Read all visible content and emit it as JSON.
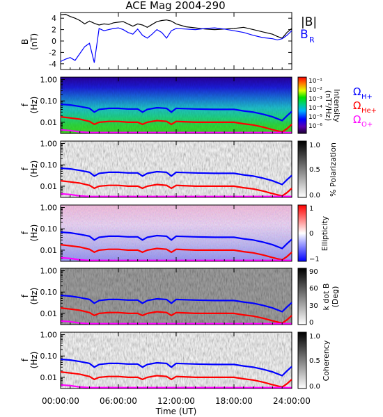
{
  "chart_data": {
    "type": "line",
    "title": "ACE Mag 2004-290",
    "xlabel": "Time (UT)",
    "x_ticks": [
      "00:00:00",
      "06:00:00",
      "12:00:00",
      "18:00:00",
      "24:00:00"
    ],
    "x_range_hours": [
      0,
      24
    ],
    "colors": {
      "B_total": "#000000",
      "B_R": "#0000ff",
      "H_plus": "#0000ff",
      "He_plus": "#ff0000",
      "O_plus": "#ff00ff"
    },
    "panels": [
      {
        "id": "field",
        "ylabel": "B",
        "yunit": "(nT)",
        "ylim": [
          -5,
          5
        ],
        "y_ticks": [
          "4",
          "2",
          "0",
          "-2",
          "-4"
        ],
        "y_tick_values": [
          4,
          2,
          0,
          -2,
          -4
        ],
        "legend_labels": [
          "|B|",
          "B",
          "R"
        ],
        "series": [
          {
            "name": "|B|",
            "hours": [
              0,
              0.5,
              1,
              1.5,
              2,
              2.5,
              3,
              3.5,
              4,
              4.5,
              5,
              5.5,
              6,
              6.5,
              7,
              7.5,
              8,
              8.5,
              9,
              9.5,
              10,
              10.5,
              11,
              11.5,
              12,
              13,
              14,
              15,
              16,
              17,
              18,
              19,
              20,
              21,
              22,
              22.5,
              23,
              23.5,
              24
            ],
            "values": [
              4.6,
              4.7,
              4.3,
              4.0,
              3.6,
              3.0,
              3.5,
              3.1,
              2.8,
              3.0,
              2.9,
              3.2,
              3.3,
              3.4,
              3.0,
              2.6,
              3.0,
              2.8,
              2.4,
              2.9,
              3.4,
              3.6,
              3.7,
              3.5,
              3.0,
              2.5,
              2.3,
              2.1,
              2.0,
              2.1,
              2.2,
              2.4,
              2.0,
              1.6,
              1.2,
              0.8,
              0.5,
              1.5,
              2.2
            ]
          },
          {
            "name": "B_R",
            "hours": [
              0,
              0.5,
              1,
              1.5,
              2,
              2.5,
              3,
              3.5,
              4,
              4.5,
              5,
              5.5,
              6,
              6.5,
              7,
              7.5,
              8,
              8.5,
              9,
              9.5,
              10,
              10.5,
              11,
              11.5,
              12,
              13,
              14,
              15,
              16,
              17,
              18,
              19,
              20,
              21,
              22,
              22.5,
              23,
              23.5,
              24
            ],
            "values": [
              -3.6,
              -3.2,
              -2.9,
              -3.4,
              -2.2,
              -1.0,
              -0.4,
              -3.8,
              2.2,
              1.8,
              2.0,
              2.2,
              2.3,
              2.0,
              1.5,
              1.2,
              2.1,
              1.0,
              0.5,
              1.2,
              2.0,
              1.5,
              0.5,
              1.8,
              2.2,
              2.1,
              2.0,
              2.2,
              2.3,
              2.1,
              1.8,
              1.5,
              1.0,
              0.6,
              0.4,
              0.2,
              0.4,
              1.0,
              1.8
            ]
          }
        ]
      },
      {
        "id": "intensity",
        "ylabel": "f",
        "yunit": "(Hz)",
        "ylim": [
          0.003,
          1.3
        ],
        "log_y": true,
        "y_ticks": [
          "1.00",
          "0.10",
          "0.01"
        ],
        "colorbar": {
          "label": "Intensity",
          "unit": "(nT²/Hz)",
          "ticks": [
            "10⁻¹",
            "10⁻²",
            "10⁻³",
            "10⁻⁴",
            "10⁻⁵",
            "10⁻⁶"
          ],
          "palette": "rainbow"
        },
        "legend_labels": [
          "Ω",
          "H+",
          "Ω",
          "He+",
          "Ω",
          "O+"
        ]
      },
      {
        "id": "polarization",
        "ylabel": "f",
        "yunit": "(Hz)",
        "ylim": [
          0.003,
          1.3
        ],
        "log_y": true,
        "y_ticks": [
          "1.00",
          "0.10",
          "0.01"
        ],
        "colorbar": {
          "label": "% Polarization",
          "ticks": [
            "1.0",
            "0.5",
            "0.0"
          ],
          "palette": "gray"
        }
      },
      {
        "id": "ellipticity",
        "ylabel": "f",
        "yunit": "(Hz)",
        "ylim": [
          0.003,
          1.3
        ],
        "log_y": true,
        "y_ticks": [
          "1.00",
          "0.10",
          "0.01"
        ],
        "colorbar": {
          "label": "Ellipticity",
          "ticks": [
            "1",
            "0",
            "−1"
          ],
          "palette": "redwhiteblue"
        }
      },
      {
        "id": "kdotb",
        "ylabel": "f",
        "yunit": "(Hz)",
        "ylim": [
          0.003,
          1.3
        ],
        "log_y": true,
        "y_ticks": [
          "1.00",
          "0.10",
          "0.01"
        ],
        "colorbar": {
          "label": "k dot B",
          "unit": "(Deg)",
          "ticks": [
            "90",
            "60",
            "30",
            "0"
          ],
          "palette": "gray"
        }
      },
      {
        "id": "coherency",
        "ylabel": "f",
        "yunit": "(Hz)",
        "ylim": [
          0.003,
          1.3
        ],
        "log_y": true,
        "y_ticks": [
          "1.00",
          "0.10",
          "0.01"
        ],
        "colorbar": {
          "label": "Coherency",
          "ticks": [
            "1.0",
            "0.5",
            "0.0"
          ],
          "palette": "gray"
        }
      }
    ],
    "gyrofrequency_overlays": [
      {
        "name": "H+",
        "hours": [
          0,
          1,
          2,
          3,
          3.5,
          4,
          5,
          6,
          7,
          8,
          8.5,
          9,
          10,
          11,
          11.5,
          12,
          14,
          16,
          18,
          19,
          20,
          21,
          22,
          23,
          23.5,
          24
        ],
        "hz": [
          0.07,
          0.065,
          0.055,
          0.045,
          0.03,
          0.04,
          0.045,
          0.045,
          0.042,
          0.042,
          0.03,
          0.04,
          0.048,
          0.045,
          0.03,
          0.045,
          0.042,
          0.04,
          0.04,
          0.034,
          0.03,
          0.024,
          0.018,
          0.012,
          0.02,
          0.032
        ]
      },
      {
        "name": "He+",
        "hours": [
          0,
          1,
          2,
          3,
          3.5,
          4,
          5,
          6,
          7,
          8,
          8.5,
          9,
          10,
          11,
          11.5,
          12,
          14,
          16,
          18,
          19,
          20,
          21,
          22,
          23,
          23.5,
          24
        ],
        "hz": [
          0.018,
          0.016,
          0.014,
          0.011,
          0.008,
          0.01,
          0.011,
          0.011,
          0.01,
          0.01,
          0.008,
          0.01,
          0.012,
          0.011,
          0.008,
          0.011,
          0.01,
          0.01,
          0.01,
          0.0085,
          0.0075,
          0.006,
          0.0045,
          0.0035,
          0.005,
          0.008
        ]
      },
      {
        "name": "O+",
        "hours": [
          0,
          1,
          2,
          3,
          4,
          6,
          8,
          10,
          12,
          14,
          16,
          18,
          20,
          22,
          24
        ],
        "hz": [
          0.0044,
          0.0041,
          0.0035,
          0.0033,
          0.0033,
          0.0033,
          0.0033,
          0.0033,
          0.0033,
          0.0033,
          0.0033,
          0.0033,
          0.0033,
          0.0033,
          0.0033
        ]
      }
    ]
  }
}
